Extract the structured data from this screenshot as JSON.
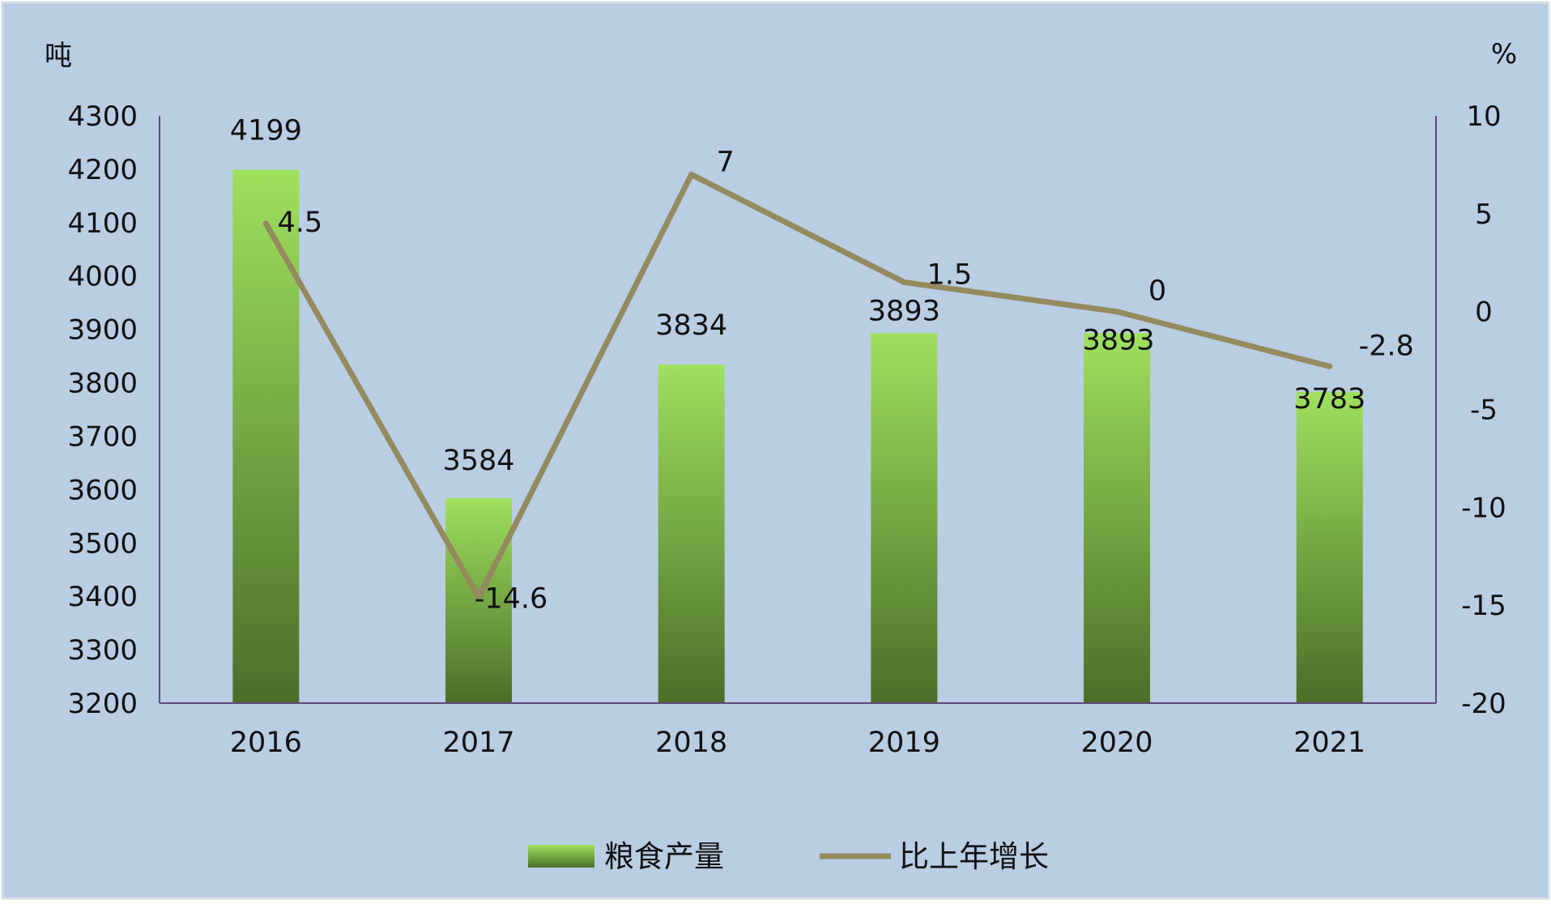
{
  "chart_data": {
    "type": "bar",
    "categories": [
      "2016",
      "2017",
      "2018",
      "2019",
      "2020",
      "2021"
    ],
    "series": [
      {
        "name": "粮食产量",
        "type": "bar",
        "axis": "left",
        "values": [
          4199,
          3584,
          3834,
          3893,
          3893,
          3783
        ],
        "value_labels": [
          "4199",
          "3584",
          "3834",
          "3893",
          "3893",
          "3783"
        ]
      },
      {
        "name": "比上年增长",
        "type": "line",
        "axis": "right",
        "values": [
          4.5,
          -14.6,
          7,
          1.5,
          0,
          -2.8
        ],
        "value_labels": [
          "4.5",
          "-14.6",
          "7",
          "1.5",
          "0",
          "-2.8"
        ]
      }
    ],
    "y_left": {
      "unit": "吨",
      "ylim": [
        3200,
        4300
      ],
      "ticks": [
        "4300",
        "4200",
        "4100",
        "4000",
        "3900",
        "3800",
        "3700",
        "3600",
        "3500",
        "3400",
        "3300",
        "3200"
      ]
    },
    "y_right": {
      "unit": "%",
      "ylim": [
        -20,
        10
      ],
      "ticks": [
        "10",
        "5",
        "0",
        "-5",
        "-10",
        "-15",
        "-20"
      ]
    },
    "grid": false,
    "legend_position": "bottom",
    "colors": {
      "background": "#b9cde3",
      "bar_top": "#9fe05e",
      "bar_bottom": "#4b6e28",
      "line": "#948a5e",
      "axis": "#5b4a78"
    }
  }
}
